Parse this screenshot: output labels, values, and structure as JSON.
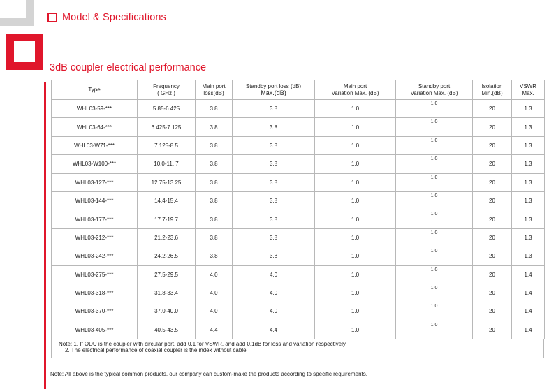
{
  "section": {
    "title": "Model & Specifications",
    "subtitle": "3dB coupler electrical performance"
  },
  "table": {
    "headers": {
      "type": "Type",
      "freq": [
        "Frequency",
        "( GHz )"
      ],
      "main_loss": [
        "Main port",
        "loss(dB)"
      ],
      "standby_loss": [
        "Standby port loss (dB)",
        "Max.(dB)"
      ],
      "main_var": [
        "Main port",
        "Variation Max. (dB)"
      ],
      "standby_var": [
        "Standby port",
        "Variation Max. (dB)"
      ],
      "isolation": [
        "Isolation",
        "Min.(dB)"
      ],
      "vswr": [
        "VSWR",
        "Max."
      ]
    },
    "rows": [
      {
        "type": "WHL03-59-***",
        "freq": "5.85-6.425",
        "main_loss": "3.8",
        "standby_loss": "3.8",
        "main_var": "1.0",
        "standby_var": "1.0",
        "isolation": "20",
        "vswr": "1.3"
      },
      {
        "type": "WHL03-64-***",
        "freq": "6.425-7.125",
        "main_loss": "3.8",
        "standby_loss": "3.8",
        "main_var": "1.0",
        "standby_var": "1.0",
        "isolation": "20",
        "vswr": "1.3"
      },
      {
        "type": "WHL03-W71-***",
        "freq": "7.125-8.5",
        "main_loss": "3.8",
        "standby_loss": "3.8",
        "main_var": "1.0",
        "standby_var": "1.0",
        "isolation": "20",
        "vswr": "1.3"
      },
      {
        "type": "WHL03-W100-***",
        "freq": "10.0-11. 7",
        "main_loss": "3.8",
        "standby_loss": "3.8",
        "main_var": "1.0",
        "standby_var": "1.0",
        "isolation": "20",
        "vswr": "1.3"
      },
      {
        "type": "WHL03-127-***",
        "freq": "12.75-13.25",
        "main_loss": "3.8",
        "standby_loss": "3.8",
        "main_var": "1.0",
        "standby_var": "1.0",
        "isolation": "20",
        "vswr": "1.3"
      },
      {
        "type": "WHL03-144-***",
        "freq": "14.4-15.4",
        "main_loss": "3.8",
        "standby_loss": "3.8",
        "main_var": "1.0",
        "standby_var": "1.0",
        "isolation": "20",
        "vswr": "1.3"
      },
      {
        "type": "WHL03-177-***",
        "freq": "17.7-19.7",
        "main_loss": "3.8",
        "standby_loss": "3.8",
        "main_var": "1.0",
        "standby_var": "1.0",
        "isolation": "20",
        "vswr": "1.3"
      },
      {
        "type": "WHL03-212-***",
        "freq": "21.2-23.6",
        "main_loss": "3.8",
        "standby_loss": "3.8",
        "main_var": "1.0",
        "standby_var": "1.0",
        "isolation": "20",
        "vswr": "1.3"
      },
      {
        "type": "WHL03-242-***",
        "freq": "24.2-26.5",
        "main_loss": "3.8",
        "standby_loss": "3.8",
        "main_var": "1.0",
        "standby_var": "1.0",
        "isolation": "20",
        "vswr": "1.3"
      },
      {
        "type": "WHL03-275-***",
        "freq": "27.5-29.5",
        "main_loss": "4.0",
        "standby_loss": "4.0",
        "main_var": "1.0",
        "standby_var": "1.0",
        "isolation": "20",
        "vswr": "1.4"
      },
      {
        "type": "WHL03-318-***",
        "freq": "31.8-33.4",
        "main_loss": "4.0",
        "standby_loss": "4.0",
        "main_var": "1.0",
        "standby_var": "1.0",
        "isolation": "20",
        "vswr": "1.4"
      },
      {
        "type": "WHL03-370-***",
        "freq": "37.0-40.0",
        "main_loss": "4.0",
        "standby_loss": "4.0",
        "main_var": "1.0",
        "standby_var": "1.0",
        "isolation": "20",
        "vswr": "1.4"
      },
      {
        "type": "WHL03-405-***",
        "freq": "40.5-43.5",
        "main_loss": "4.4",
        "standby_loss": "4.4",
        "main_var": "1.0",
        "standby_var": "1.0",
        "isolation": "20",
        "vswr": "1.4"
      }
    ]
  },
  "note": {
    "line1": "Note: 1. If ODU is the coupler with circular port, add 0.1 for VSWR, and add 0.1dB for loss and  variation respectively.",
    "line2": "2. The electrical performance of coaxial coupler is the index without cable."
  },
  "footer_note": "Note: All above is the typical common products, our company can custom-make the products according to specific requirements.",
  "colors": {
    "accent": "#e0162b",
    "deco_gray": "#d4d4d4",
    "border": "#b8b8b8"
  }
}
